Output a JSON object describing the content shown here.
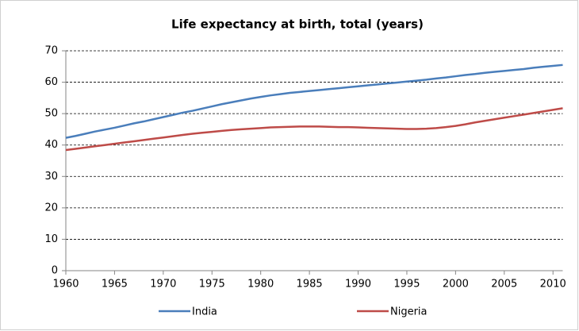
{
  "chart_data": {
    "type": "line",
    "title": "Life expectancy at birth, total (years)",
    "x": [
      1960,
      1961,
      1962,
      1963,
      1964,
      1965,
      1966,
      1967,
      1968,
      1969,
      1970,
      1971,
      1972,
      1973,
      1974,
      1975,
      1976,
      1977,
      1978,
      1979,
      1980,
      1981,
      1982,
      1983,
      1984,
      1985,
      1986,
      1987,
      1988,
      1989,
      1990,
      1991,
      1992,
      1993,
      1994,
      1995,
      1996,
      1997,
      1998,
      1999,
      2000,
      2001,
      2002,
      2003,
      2004,
      2005,
      2006,
      2007,
      2008,
      2009,
      2010,
      2011
    ],
    "series": [
      {
        "name": "India",
        "color": "#4a7ebb",
        "values": [
          42.3,
          42.9,
          43.6,
          44.3,
          44.9,
          45.5,
          46.2,
          46.9,
          47.5,
          48.2,
          48.9,
          49.6,
          50.3,
          50.9,
          51.6,
          52.3,
          53.0,
          53.6,
          54.2,
          54.8,
          55.3,
          55.8,
          56.2,
          56.6,
          56.9,
          57.2,
          57.5,
          57.8,
          58.1,
          58.4,
          58.7,
          59.0,
          59.3,
          59.6,
          59.9,
          60.2,
          60.5,
          60.8,
          61.2,
          61.5,
          61.9,
          62.3,
          62.6,
          63.0,
          63.3,
          63.6,
          63.9,
          64.2,
          64.6,
          64.9,
          65.2,
          65.5
        ]
      },
      {
        "name": "Nigeria",
        "color": "#be4b48",
        "values": [
          38.4,
          38.8,
          39.2,
          39.6,
          40.0,
          40.4,
          40.8,
          41.2,
          41.6,
          42.0,
          42.4,
          42.8,
          43.2,
          43.6,
          43.9,
          44.2,
          44.5,
          44.8,
          45.0,
          45.2,
          45.4,
          45.6,
          45.7,
          45.8,
          45.9,
          45.9,
          45.9,
          45.8,
          45.7,
          45.7,
          45.6,
          45.5,
          45.4,
          45.3,
          45.2,
          45.1,
          45.1,
          45.2,
          45.4,
          45.7,
          46.1,
          46.6,
          47.2,
          47.7,
          48.2,
          48.7,
          49.2,
          49.7,
          50.2,
          50.7,
          51.2,
          51.7
        ]
      }
    ],
    "xlim": [
      1960,
      2011
    ],
    "xticks": [
      1960,
      1965,
      1970,
      1975,
      1980,
      1985,
      1990,
      1995,
      2000,
      2005,
      2010
    ],
    "ylim": [
      0,
      70
    ],
    "yticks": [
      0,
      10,
      20,
      30,
      40,
      50,
      60,
      70
    ],
    "grid": true,
    "legend": "bottom"
  }
}
